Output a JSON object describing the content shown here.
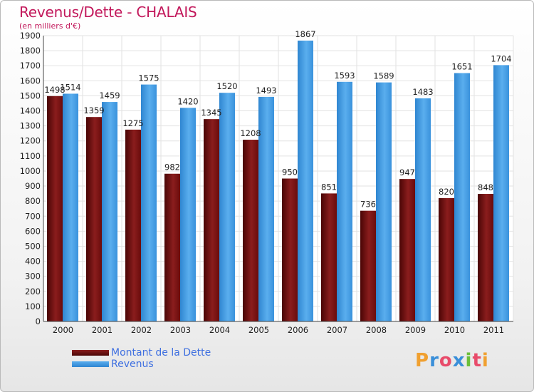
{
  "title": "Revenus/Dette - CHALAIS",
  "subtitle": "(en milliers d'€)",
  "logo": {
    "text": "Proxiti",
    "colors": [
      "#f0a030",
      "#3a8fd9",
      "#e84b6a",
      "#3a8fd9",
      "#6bbf3a",
      "#e84b6a",
      "#f0a030"
    ]
  },
  "colors": {
    "dette": "#7a1212",
    "revenus": "#3a96e0",
    "title": "#c2185b"
  },
  "legend": {
    "dette_label": "Montant de la Dette",
    "revenus_label": "Revenus"
  },
  "chart_data": {
    "type": "bar",
    "categories": [
      "2000",
      "2001",
      "2002",
      "2003",
      "2004",
      "2005",
      "2006",
      "2007",
      "2008",
      "2009",
      "2010",
      "2011"
    ],
    "series": [
      {
        "name": "Montant de la Dette",
        "values": [
          1498,
          1359,
          1275,
          982,
          1345,
          1208,
          950,
          851,
          736,
          947,
          820,
          848
        ]
      },
      {
        "name": "Revenus",
        "values": [
          1514,
          1459,
          1575,
          1420,
          1520,
          1493,
          1867,
          1593,
          1589,
          1483,
          1651,
          1704
        ]
      }
    ],
    "data_labels": [
      [
        "1498",
        "1359",
        "1275",
        "982",
        "1345",
        "1208",
        "950",
        "851",
        "736",
        "947",
        "820",
        "848"
      ],
      [
        "1514",
        "1459",
        "1575",
        "1420",
        "1520",
        "1493",
        "1867",
        "1593",
        "1589",
        "1483",
        "1651",
        "1704"
      ]
    ],
    "y_ticks": [
      "0",
      "100",
      "200",
      "300",
      "400",
      "500",
      "600",
      "700",
      "800",
      "900",
      "1000",
      "1100",
      "1200",
      "1300",
      "1400",
      "1500",
      "1600",
      "1700",
      "1800",
      "1900"
    ],
    "ylim": [
      0,
      1900
    ],
    "grid": true,
    "legend_position": "bottom-left"
  }
}
